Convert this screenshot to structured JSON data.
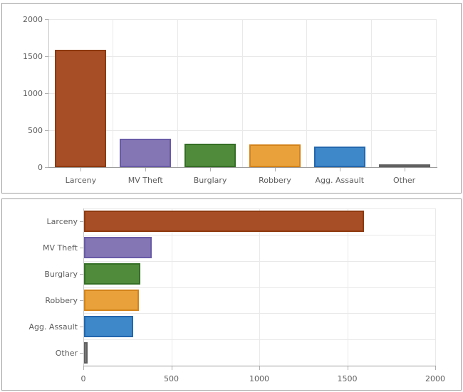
{
  "chart_data": [
    {
      "type": "bar",
      "orientation": "vertical",
      "title": "",
      "xlabel": "",
      "ylabel": "",
      "categories": [
        "Larceny",
        "MV Theft",
        "Burglary",
        "Robbery",
        "Agg. Assault",
        "Other"
      ],
      "values": [
        1590,
        385,
        320,
        310,
        280,
        20
      ],
      "ylim": [
        0,
        2000
      ],
      "yticks": [
        0,
        500,
        1000,
        1500,
        2000
      ],
      "grid": true,
      "legend": false
    },
    {
      "type": "bar",
      "orientation": "horizontal",
      "title": "",
      "xlabel": "",
      "ylabel": "",
      "categories": [
        "Larceny",
        "MV Theft",
        "Burglary",
        "Robbery",
        "Agg. Assault",
        "Other"
      ],
      "values": [
        1590,
        385,
        320,
        310,
        280,
        20
      ],
      "xlim": [
        0,
        2000
      ],
      "xticks": [
        0,
        500,
        1000,
        1500,
        2000
      ],
      "grid": true,
      "legend": false
    }
  ],
  "palette": [
    {
      "name": "larceny",
      "fill": "#A84E26",
      "stroke": "#8E3A10"
    },
    {
      "name": "mv-theft",
      "fill": "#8475B5",
      "stroke": "#6A5BA7"
    },
    {
      "name": "burglary",
      "fill": "#4F8B3B",
      "stroke": "#356F26"
    },
    {
      "name": "robbery",
      "fill": "#E9A23B",
      "stroke": "#D3831A"
    },
    {
      "name": "agg-assault",
      "fill": "#3E87C8",
      "stroke": "#2367AE"
    },
    {
      "name": "other",
      "fill": "#898989",
      "stroke": "#606060"
    }
  ],
  "style": {
    "panel_border": "#a0a0a0",
    "grid_color": "#e9e9e9",
    "axis_color": "#c6c6c6",
    "baseline_color": "#9c9c9c",
    "label_color": "#5d5d5d"
  }
}
